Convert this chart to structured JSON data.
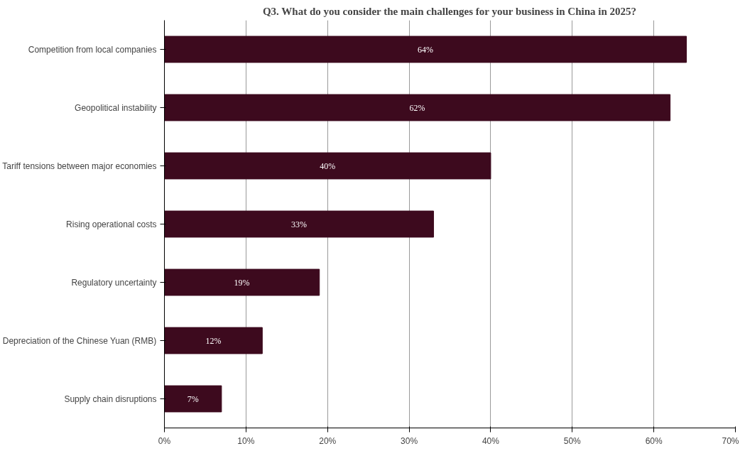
{
  "chart_data": {
    "type": "bar",
    "orientation": "horizontal",
    "title": "Q3. What do you consider the main challenges for your business in China in 2025?",
    "categories": [
      "Competition from local companies",
      "Geopolitical instability",
      "Tariff tensions between major economies",
      "Rising operational costs",
      "Regulatory uncertainty",
      "Depreciation of the Chinese Yuan (RMB)",
      "Supply chain disruptions"
    ],
    "values": [
      64,
      62,
      40,
      33,
      19,
      12,
      7
    ],
    "value_labels": [
      "64%",
      "62%",
      "40%",
      "33%",
      "19%",
      "12%",
      "7%"
    ],
    "color": "#3d0a1e",
    "xlim": [
      0,
      70
    ],
    "xticks": [
      {
        "value": 0,
        "label": "0%"
      },
      {
        "value": 10,
        "label": "10%"
      },
      {
        "value": 20,
        "label": "20%"
      },
      {
        "value": 30,
        "label": "30%"
      },
      {
        "value": 40,
        "label": "40%"
      },
      {
        "value": 50,
        "label": "50%"
      },
      {
        "value": 60,
        "label": "60%"
      },
      {
        "value": 70,
        "label": "70%"
      }
    ],
    "grid": "x"
  }
}
